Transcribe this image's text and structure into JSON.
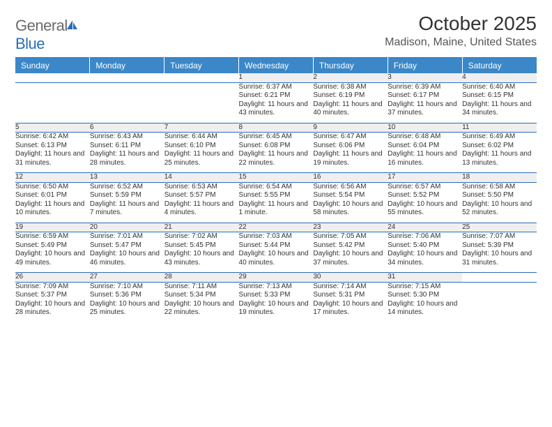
{
  "logo": {
    "text_gray": "General",
    "text_blue": "Blue"
  },
  "title": "October 2025",
  "location": "Madison, Maine, United States",
  "colors": {
    "header_bg": "#3b87c8",
    "header_text": "#ffffff",
    "border": "#2a6db8",
    "daynum_bg": "#efefef",
    "text": "#333333",
    "logo_gray": "#6b6b6b",
    "logo_blue": "#2a6db8"
  },
  "day_headers": [
    "Sunday",
    "Monday",
    "Tuesday",
    "Wednesday",
    "Thursday",
    "Friday",
    "Saturday"
  ],
  "weeks": [
    {
      "nums": [
        "",
        "",
        "",
        "1",
        "2",
        "3",
        "4"
      ],
      "cells": [
        "",
        "",
        "",
        "Sunrise: 6:37 AM\nSunset: 6:21 PM\nDaylight: 11 hours and 43 minutes.",
        "Sunrise: 6:38 AM\nSunset: 6:19 PM\nDaylight: 11 hours and 40 minutes.",
        "Sunrise: 6:39 AM\nSunset: 6:17 PM\nDaylight: 11 hours and 37 minutes.",
        "Sunrise: 6:40 AM\nSunset: 6:15 PM\nDaylight: 11 hours and 34 minutes."
      ]
    },
    {
      "nums": [
        "5",
        "6",
        "7",
        "8",
        "9",
        "10",
        "11"
      ],
      "cells": [
        "Sunrise: 6:42 AM\nSunset: 6:13 PM\nDaylight: 11 hours and 31 minutes.",
        "Sunrise: 6:43 AM\nSunset: 6:11 PM\nDaylight: 11 hours and 28 minutes.",
        "Sunrise: 6:44 AM\nSunset: 6:10 PM\nDaylight: 11 hours and 25 minutes.",
        "Sunrise: 6:45 AM\nSunset: 6:08 PM\nDaylight: 11 hours and 22 minutes.",
        "Sunrise: 6:47 AM\nSunset: 6:06 PM\nDaylight: 11 hours and 19 minutes.",
        "Sunrise: 6:48 AM\nSunset: 6:04 PM\nDaylight: 11 hours and 16 minutes.",
        "Sunrise: 6:49 AM\nSunset: 6:02 PM\nDaylight: 11 hours and 13 minutes."
      ]
    },
    {
      "nums": [
        "12",
        "13",
        "14",
        "15",
        "16",
        "17",
        "18"
      ],
      "cells": [
        "Sunrise: 6:50 AM\nSunset: 6:01 PM\nDaylight: 11 hours and 10 minutes.",
        "Sunrise: 6:52 AM\nSunset: 5:59 PM\nDaylight: 11 hours and 7 minutes.",
        "Sunrise: 6:53 AM\nSunset: 5:57 PM\nDaylight: 11 hours and 4 minutes.",
        "Sunrise: 6:54 AM\nSunset: 5:55 PM\nDaylight: 11 hours and 1 minute.",
        "Sunrise: 6:56 AM\nSunset: 5:54 PM\nDaylight: 10 hours and 58 minutes.",
        "Sunrise: 6:57 AM\nSunset: 5:52 PM\nDaylight: 10 hours and 55 minutes.",
        "Sunrise: 6:58 AM\nSunset: 5:50 PM\nDaylight: 10 hours and 52 minutes."
      ]
    },
    {
      "nums": [
        "19",
        "20",
        "21",
        "22",
        "23",
        "24",
        "25"
      ],
      "cells": [
        "Sunrise: 6:59 AM\nSunset: 5:49 PM\nDaylight: 10 hours and 49 minutes.",
        "Sunrise: 7:01 AM\nSunset: 5:47 PM\nDaylight: 10 hours and 46 minutes.",
        "Sunrise: 7:02 AM\nSunset: 5:45 PM\nDaylight: 10 hours and 43 minutes.",
        "Sunrise: 7:03 AM\nSunset: 5:44 PM\nDaylight: 10 hours and 40 minutes.",
        "Sunrise: 7:05 AM\nSunset: 5:42 PM\nDaylight: 10 hours and 37 minutes.",
        "Sunrise: 7:06 AM\nSunset: 5:40 PM\nDaylight: 10 hours and 34 minutes.",
        "Sunrise: 7:07 AM\nSunset: 5:39 PM\nDaylight: 10 hours and 31 minutes."
      ]
    },
    {
      "nums": [
        "26",
        "27",
        "28",
        "29",
        "30",
        "31",
        ""
      ],
      "cells": [
        "Sunrise: 7:09 AM\nSunset: 5:37 PM\nDaylight: 10 hours and 28 minutes.",
        "Sunrise: 7:10 AM\nSunset: 5:36 PM\nDaylight: 10 hours and 25 minutes.",
        "Sunrise: 7:11 AM\nSunset: 5:34 PM\nDaylight: 10 hours and 22 minutes.",
        "Sunrise: 7:13 AM\nSunset: 5:33 PM\nDaylight: 10 hours and 19 minutes.",
        "Sunrise: 7:14 AM\nSunset: 5:31 PM\nDaylight: 10 hours and 17 minutes.",
        "Sunrise: 7:15 AM\nSunset: 5:30 PM\nDaylight: 10 hours and 14 minutes.",
        ""
      ]
    }
  ]
}
